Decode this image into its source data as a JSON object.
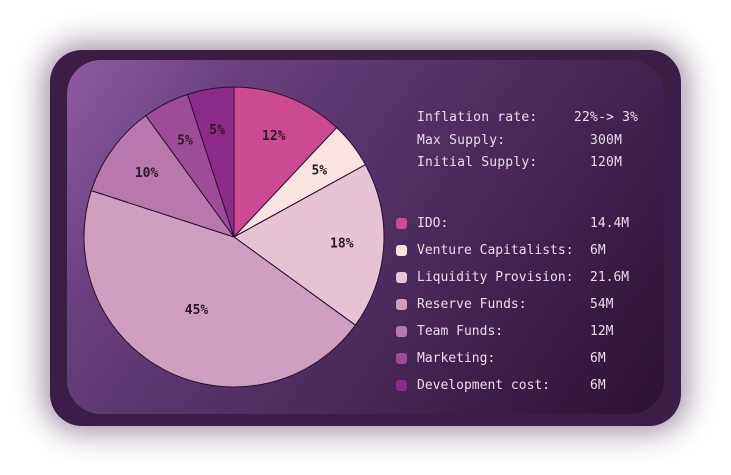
{
  "info": [
    {
      "label": "Inflation rate:",
      "value": "22%-> 3%"
    },
    {
      "label": "Max Supply:",
      "value": "300M"
    },
    {
      "label": "Initial Supply:",
      "value": "120M"
    }
  ],
  "legend": [
    {
      "label": "IDO:",
      "value": "14.4M"
    },
    {
      "label": "Venture Capitalists:",
      "value": "6M"
    },
    {
      "label": "Liquidity Provision:",
      "value": "21.6M"
    },
    {
      "label": "Reserve Funds:",
      "value": "54M"
    },
    {
      "label": "Team Funds:",
      "value": "12M"
    },
    {
      "label": "Marketing:",
      "value": "6M"
    },
    {
      "label": "Development cost:",
      "value": "6M"
    }
  ],
  "chart_data": {
    "type": "pie",
    "categories": [
      "IDO",
      "Venture Capitalists",
      "Liquidity Provision",
      "Reserve Funds",
      "Team Funds",
      "Marketing",
      "Development cost"
    ],
    "values": [
      12,
      5,
      18,
      45,
      10,
      5,
      5
    ],
    "labels": [
      "12%",
      "5%",
      "18%",
      "45%",
      "10%",
      "5%",
      "5%"
    ],
    "colors": [
      "#cc4a91",
      "#fbe3e1",
      "#e7c2d2",
      "#d09fbf",
      "#b877ad",
      "#9d4d97",
      "#8d2b89"
    ],
    "start_angle": "12 o'clock",
    "direction": "clockwise"
  }
}
